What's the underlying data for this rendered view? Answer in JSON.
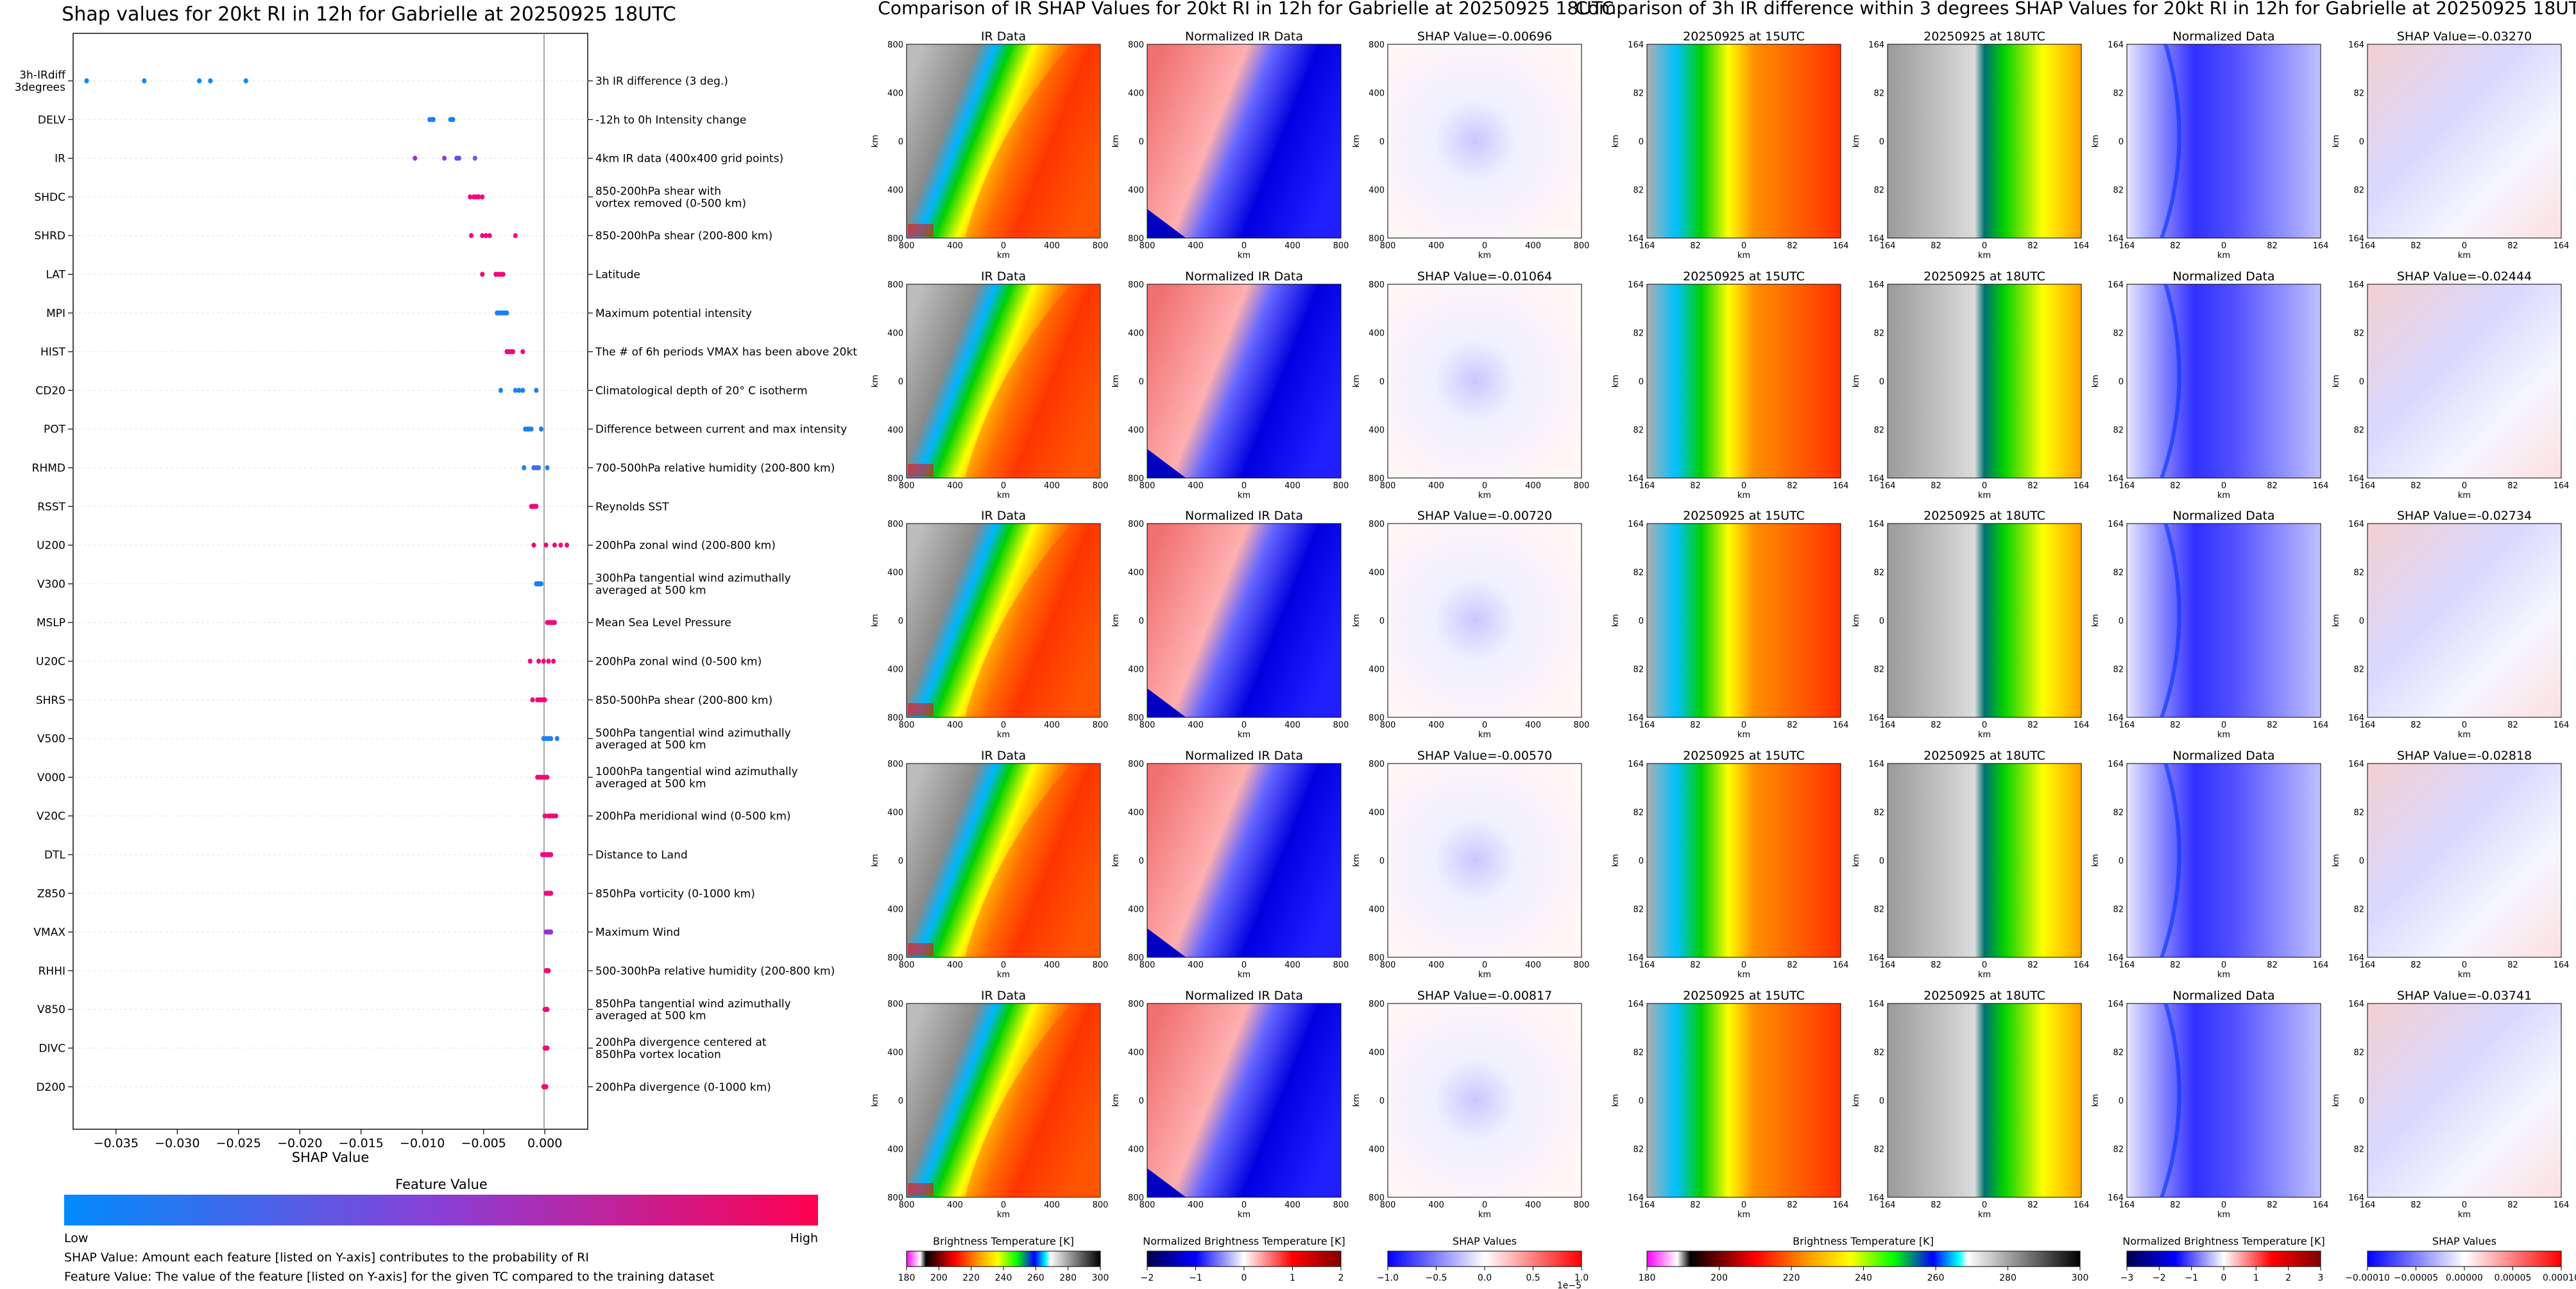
{
  "shap_panel": {
    "title": "Shap values for 20kt RI in 12h for Gabrielle at 20250925 18UTC",
    "xlabel": "SHAP Value",
    "colorbar_title": "Feature Value",
    "colorbar_low": "Low",
    "colorbar_high": "High",
    "footnote1": "SHAP Value: Amount each feature [listed on Y-axis] contributes to the probability of RI",
    "footnote2": "Feature Value: The value of the feature [listed on Y-axis] for the given TC compared to the training dataset"
  },
  "ir_panel": {
    "title": "Comparison of IR SHAP Values for 20kt RI in 12h for Gabrielle at 20250925 18UTC",
    "col_titles": [
      "IR Data",
      "Normalized IR Data"
    ],
    "shap_titles": [
      "SHAP Value=-0.00696",
      "SHAP Value=-0.01064",
      "SHAP Value=-0.00720",
      "SHAP Value=-0.00570",
      "SHAP Value=-0.00817"
    ],
    "axis_unit": "km",
    "yticks": [
      "800",
      "400",
      "0",
      "400",
      "800"
    ],
    "xticks": [
      "800",
      "400",
      "0",
      "400",
      "800"
    ],
    "cbar_labels": [
      "Brightness Temperature [K]",
      "Normalized Brightness Temperature [K]",
      "SHAP Values"
    ],
    "cbar1_ticks": [
      "180",
      "200",
      "220",
      "240",
      "260",
      "280",
      "300"
    ],
    "cbar2_ticks": [
      "−2",
      "−1",
      "0",
      "1",
      "2"
    ],
    "cbar3_ticks": [
      "−1.0",
      "−0.5",
      "0.0",
      "0.5",
      "1.0"
    ],
    "cbar3_exponent": "1e−5"
  },
  "diff_panel": {
    "title": "Comparison of 3h IR difference within 3 degrees SHAP Values for 20kt RI in 12h for Gabrielle at 20250925 18UTC",
    "col_titles": [
      "20250925 at 15UTC",
      "20250925 at 18UTC",
      "Normalized Data"
    ],
    "shap_titles": [
      "SHAP Value=-0.03270",
      "SHAP Value=-0.02444",
      "SHAP Value=-0.02734",
      "SHAP Value=-0.02818",
      "SHAP Value=-0.03741"
    ],
    "axis_unit": "km",
    "yticks": [
      "164",
      "82",
      "0",
      "82",
      "164"
    ],
    "xticks": [
      "164",
      "82",
      "0",
      "82",
      "164"
    ],
    "cbar_labels": [
      "Brightness Temperature [K]",
      "Normalized Brightness Temperature [K]",
      "SHAP Values"
    ],
    "cbar1_ticks": [
      "180",
      "200",
      "220",
      "240",
      "260",
      "280",
      "300"
    ],
    "cbar2_ticks": [
      "−3",
      "−2",
      "−1",
      "0",
      "1",
      "2",
      "3"
    ],
    "cbar3_ticks": [
      "−0.00010",
      "−0.00005",
      "0.00000",
      "0.00005",
      "0.00010"
    ]
  },
  "chart_data": {
    "type": "scatter",
    "title": "Shap values for 20kt RI in 12h for Gabrielle at 20250925 18UTC",
    "xlabel": "SHAP Value",
    "xlim": [
      -0.0385,
      0.0035
    ],
    "xticks": [
      "−0.035",
      "−0.030",
      "−0.025",
      "−0.020",
      "−0.015",
      "−0.010",
      "−0.005",
      "0.000"
    ],
    "xtick_values": [
      -0.035,
      -0.03,
      -0.025,
      -0.02,
      -0.015,
      -0.01,
      -0.005,
      0.0
    ],
    "features": [
      {
        "code": "3h-IRdiff\n3degrees",
        "desc": "3h IR difference (3 deg.)",
        "values": [
          -0.0374,
          -0.0327,
          -0.0282,
          -0.0273,
          -0.0244
        ],
        "colors": [
          "#0a8af5",
          "#0a8af5",
          "#0a8af5",
          "#0a8af5",
          "#0a8af5"
        ]
      },
      {
        "code": "DELV",
        "desc": "-12h to 0h Intensity change",
        "values": [
          -0.0094,
          -0.0092,
          -0.0091,
          -0.0077,
          -0.0075
        ],
        "colors": [
          "#1a80f0",
          "#1a80f0",
          "#1a80f0",
          "#1a80f0",
          "#1a80f0"
        ]
      },
      {
        "code": "IR",
        "desc": "4km IR data (400x400 grid points)",
        "values": [
          -0.0106,
          -0.0082,
          -0.0072,
          -0.007,
          -0.0057
        ],
        "colors": [
          "#9a30d0",
          "#8a40d8",
          "#7a48dc",
          "#6a52e0",
          "#5a60e6"
        ]
      },
      {
        "code": "SHDC",
        "desc": "850-200hPa shear with\nvortex removed (0-500 km)",
        "values": [
          -0.0061,
          -0.0058,
          -0.0056,
          -0.0054,
          -0.0051
        ],
        "colors": [
          "#f2087a",
          "#f2087a",
          "#f2087a",
          "#f2087a",
          "#f2087a"
        ]
      },
      {
        "code": "SHRD",
        "desc": "850-200hPa shear (200-800 km)",
        "values": [
          -0.006,
          -0.0051,
          -0.0048,
          -0.0045,
          -0.0024
        ],
        "colors": [
          "#f2087a",
          "#f2087a",
          "#f2087a",
          "#f2087a",
          "#f2087a"
        ]
      },
      {
        "code": "LAT",
        "desc": "Latitude",
        "values": [
          -0.0051,
          -0.004,
          -0.0038,
          -0.0036,
          -0.0034
        ],
        "colors": [
          "#f2087a",
          "#f2087a",
          "#f2087a",
          "#f2087a",
          "#f2087a"
        ]
      },
      {
        "code": "MPI",
        "desc": "Maximum potential intensity",
        "values": [
          -0.0039,
          -0.0037,
          -0.0035,
          -0.0033,
          -0.0031
        ],
        "colors": [
          "#1a80f0",
          "#1a80f0",
          "#1a80f0",
          "#1a80f0",
          "#1a80f0"
        ]
      },
      {
        "code": "HIST",
        "desc": "The # of 6h periods VMAX has been above 20kt",
        "values": [
          -0.0031,
          -0.003,
          -0.0028,
          -0.0026,
          -0.0018
        ],
        "colors": [
          "#f2087a",
          "#f2087a",
          "#f2087a",
          "#f2087a",
          "#f2087a"
        ]
      },
      {
        "code": "CD20",
        "desc": "Climatological depth of 20° C isotherm",
        "values": [
          -0.0036,
          -0.0024,
          -0.0021,
          -0.0018,
          -0.0007
        ],
        "colors": [
          "#1a80f0",
          "#1a80f0",
          "#1a80f0",
          "#1a80f0",
          "#1a80f0"
        ]
      },
      {
        "code": "POT",
        "desc": "Difference between current and max intensity",
        "values": [
          -0.0016,
          -0.0014,
          -0.0013,
          -0.0011,
          -0.0003
        ],
        "colors": [
          "#1a80f0",
          "#1a80f0",
          "#1a80f0",
          "#1a80f0",
          "#1a80f0"
        ]
      },
      {
        "code": "RHMD",
        "desc": "700-500hPa relative humidity (200-800 km)",
        "values": [
          -0.0017,
          -0.0009,
          -0.0007,
          -0.0005,
          0.0002
        ],
        "colors": [
          "#1a80f0",
          "#3a70ea",
          "#5a62e4",
          "#1a80f0",
          "#1a80f0"
        ]
      },
      {
        "code": "RSST",
        "desc": "Reynolds SST",
        "values": [
          -0.0011,
          -0.001,
          -0.0009,
          -0.0008,
          -0.0007
        ],
        "colors": [
          "#f2087a",
          "#f2087a",
          "#f2087a",
          "#f2087a",
          "#f2087a"
        ]
      },
      {
        "code": "U200",
        "desc": "200hPa zonal wind (200-800 km)",
        "values": [
          -0.0009,
          0.0001,
          0.0008,
          0.0013,
          0.0018
        ],
        "colors": [
          "#f2087a",
          "#f2087a",
          "#f2087a",
          "#f2087a",
          "#f2087a"
        ]
      },
      {
        "code": "V300",
        "desc": "300hPa tangential wind azimuthally\naveraged at 500 km",
        "values": [
          -0.0007,
          -0.0006,
          -0.0005,
          -0.0004,
          -0.0003
        ],
        "colors": [
          "#1a80f0",
          "#1a80f0",
          "#1a80f0",
          "#1a80f0",
          "#1a80f0"
        ]
      },
      {
        "code": "MSLP",
        "desc": "Mean Sea Level Pressure",
        "values": [
          0.0002,
          0.0004,
          0.0005,
          0.0006,
          0.0008
        ],
        "colors": [
          "#f2087a",
          "#f2087a",
          "#f2087a",
          "#f2087a",
          "#f2087a"
        ]
      },
      {
        "code": "U20C",
        "desc": "200hPa zonal wind (0-500 km)",
        "values": [
          -0.0012,
          -0.0005,
          -0.0001,
          0.0003,
          0.0007
        ],
        "colors": [
          "#f2087a",
          "#f2087a",
          "#f2087a",
          "#f2087a",
          "#f2087a"
        ]
      },
      {
        "code": "SHRS",
        "desc": "850-500hPa shear (200-800 km)",
        "values": [
          -0.001,
          -0.0006,
          -0.0004,
          -0.0002,
          0.0
        ],
        "colors": [
          "#f2087a",
          "#f2087a",
          "#f2087a",
          "#f2087a",
          "#f2087a"
        ]
      },
      {
        "code": "V500",
        "desc": "500hPa tangential wind azimuthally\naveraged at 500 km",
        "values": [
          -0.0001,
          0.0001,
          0.0003,
          0.0005,
          0.001
        ],
        "colors": [
          "#1a80f0",
          "#1a80f0",
          "#1a80f0",
          "#1a80f0",
          "#1a80f0"
        ]
      },
      {
        "code": "V000",
        "desc": "1000hPa tangential wind azimuthally\naveraged at 500 km",
        "values": [
          -0.0006,
          -0.0004,
          -0.0002,
          0.0,
          0.0002
        ],
        "colors": [
          "#f2087a",
          "#f2087a",
          "#f2087a",
          "#f2087a",
          "#f2087a"
        ]
      },
      {
        "code": "V20C",
        "desc": "200hPa meridional wind (0-500 km)",
        "values": [
          0.0,
          0.0003,
          0.0005,
          0.0007,
          0.0009
        ],
        "colors": [
          "#f2087a",
          "#f2087a",
          "#f2087a",
          "#f2087a",
          "#f2087a"
        ]
      },
      {
        "code": "DTL",
        "desc": "Distance to Land",
        "values": [
          -0.0002,
          0.0,
          0.0002,
          0.0003,
          0.0005
        ],
        "colors": [
          "#f2087a",
          "#f2087a",
          "#f2087a",
          "#f2087a",
          "#f2087a"
        ]
      },
      {
        "code": "Z850",
        "desc": "850hPa vorticity (0-1000 km)",
        "values": [
          0.0001,
          0.0002,
          0.0003,
          0.0004,
          0.0005
        ],
        "colors": [
          "#f2087a",
          "#f2087a",
          "#f2087a",
          "#f2087a",
          "#f2087a"
        ]
      },
      {
        "code": "VMAX",
        "desc": "Maximum Wind",
        "values": [
          0.0001,
          0.0002,
          0.0003,
          0.0004,
          0.0005
        ],
        "colors": [
          "#9a30d0",
          "#9a30d0",
          "#9a30d0",
          "#9a30d0",
          "#9a30d0"
        ]
      },
      {
        "code": "RHHI",
        "desc": "500-300hPa relative humidity (200-800 km)",
        "values": [
          0.0001,
          0.0002,
          0.0002,
          0.0003,
          0.0003
        ],
        "colors": [
          "#f2087a",
          "#f2087a",
          "#f2087a",
          "#f2087a",
          "#f2087a"
        ]
      },
      {
        "code": "V850",
        "desc": "850hPa tangential wind azimuthally\naveraged at 500 km",
        "values": [
          0.0,
          0.0001,
          0.0001,
          0.0002,
          0.0002
        ],
        "colors": [
          "#f2087a",
          "#f2087a",
          "#f2087a",
          "#f2087a",
          "#f2087a"
        ]
      },
      {
        "code": "DIVC",
        "desc": "200hPa divergence centered at\n850hPa vortex location",
        "values": [
          0.0,
          0.0001,
          0.0001,
          0.0001,
          0.0002
        ],
        "colors": [
          "#f2087a",
          "#f2087a",
          "#f2087a",
          "#f2087a",
          "#f2087a"
        ]
      },
      {
        "code": "D200",
        "desc": "200hPa divergence (0-1000 km)",
        "values": [
          -0.0001,
          0.0,
          0.0,
          0.0001,
          0.0001
        ],
        "colors": [
          "#f2087a",
          "#f2087a",
          "#f2087a",
          "#f2087a",
          "#f2087a"
        ]
      }
    ]
  }
}
